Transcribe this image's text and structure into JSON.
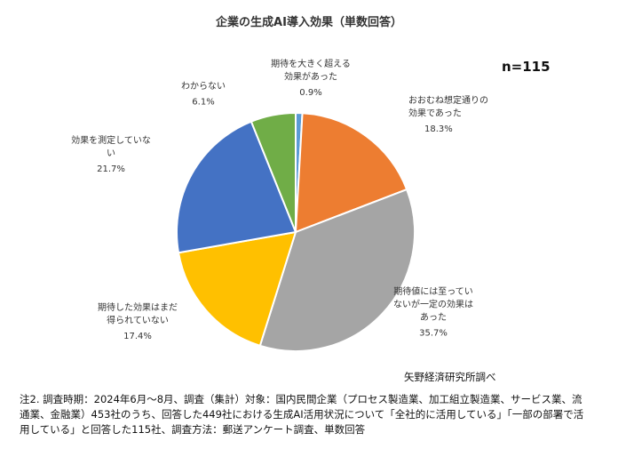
{
  "chart_data": {
    "type": "pie",
    "title": "企業の生成AI導入効果（単数回答）",
    "annotation": "n=115",
    "categories": [
      "期待を大きく超える効果があった",
      "おおむね想定通りの効果であった",
      "期待値には至っていないが一定の効果はあった",
      "期待した効果はまだ得られていない",
      "効果を測定していない",
      "わからない"
    ],
    "values": [
      0.9,
      18.3,
      35.7,
      17.4,
      21.7,
      6.1
    ],
    "value_labels": [
      "0.9%",
      "18.3%",
      "35.7%",
      "17.4%",
      "21.7%",
      "6.1%"
    ],
    "colors": [
      "#5B9BD5",
      "#ED7D31",
      "#A5A5A5",
      "#FFC000",
      "#4472C4",
      "#70AD47"
    ],
    "label_lines": [
      [
        "期待を大きく超える",
        "効果があった"
      ],
      [
        "おおむね想定通りの",
        "効果であった"
      ],
      [
        "期待値には至ってい",
        "ないが一定の効果は",
        "あった"
      ],
      [
        "期待した効果はまだ",
        "得られていない"
      ],
      [
        "効果を測定していな",
        "い"
      ],
      [
        "わからない"
      ]
    ]
  },
  "source": "矢野経済研究所調べ",
  "footnote": "注2. 調査時期：2024年6月～8月、調査（集計）対象：国内民間企業（プロセス製造業、加工組立製造業、サービス業、流通業、金融業）453社のうち、回答した449社における生成AI活用状況について「全社的に活用している」「一部の部署で活用している」と回答した115社、調査方法：郵送アンケート調査、単数回答"
}
